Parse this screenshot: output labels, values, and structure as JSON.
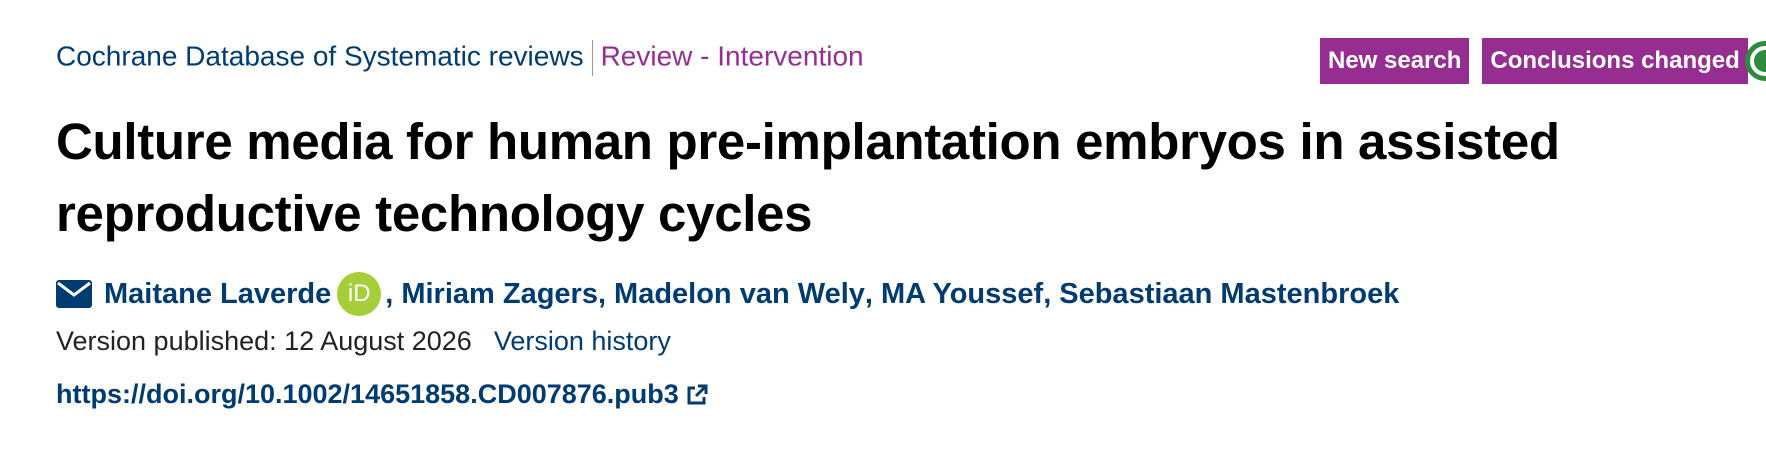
{
  "breadcrumb": {
    "database": "Cochrane Database of Systematic reviews",
    "review_type": "Review - Intervention"
  },
  "badges": [
    "New search",
    "Conclusions changed"
  ],
  "title": "Culture media for human pre-implantation embryos in assisted reproductive technology cycles",
  "authors": [
    "Maitane Laverde",
    "Miriam Zagers",
    "Madelon van Wely",
    "MA Youssef",
    "Sebastiaan Mastenbroek"
  ],
  "authors_separator": ",",
  "orcid_label": "iD",
  "version_published": "Version published: 12 August 2026",
  "version_history": "Version history",
  "doi": "https://doi.org/10.1002/14651858.CD007876.pub3"
}
